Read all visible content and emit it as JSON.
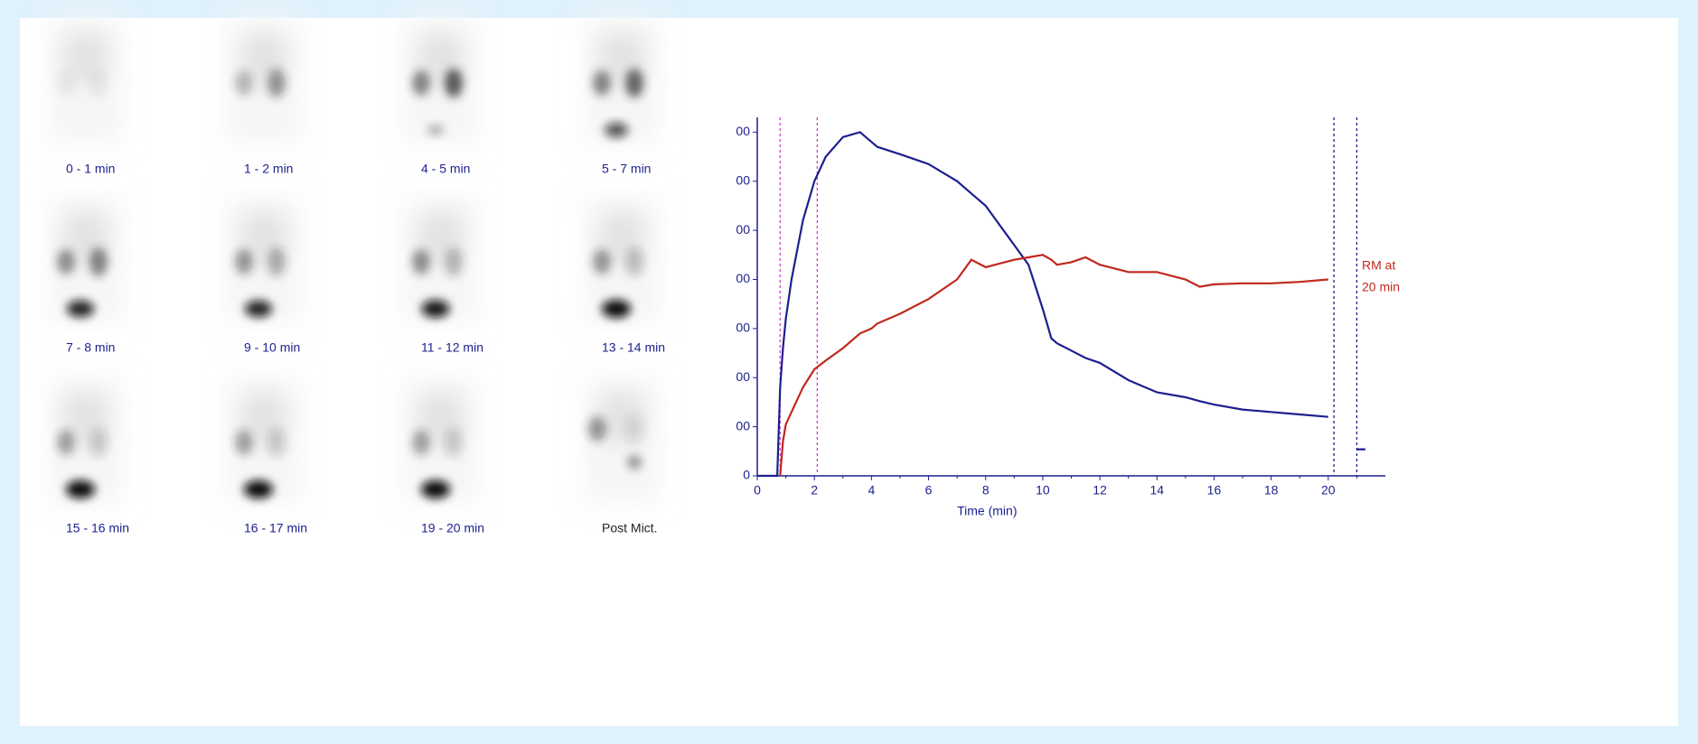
{
  "frames": [
    "0 - 1 min",
    "1 - 2 min",
    "4 - 5 min",
    "5 - 7 min",
    "7 - 8 min",
    "9 - 10 min",
    "11 - 12 min",
    "13 - 14 min",
    "15 - 16 min",
    "16 - 17 min",
    "19 - 20 min",
    "Post Mict."
  ],
  "chart_data": {
    "type": "line",
    "x_label": "Time (min)",
    "annotation": [
      "RM at",
      "20 min"
    ],
    "annotation_color": "#c0281e",
    "x": [
      0,
      0.7,
      0.8,
      0.9,
      1,
      1.2,
      1.6,
      2,
      2.4,
      3,
      3.6,
      3.8,
      4,
      4.2,
      5,
      6,
      7,
      7.5,
      8,
      9,
      9.5,
      10,
      10.3,
      10.5,
      11,
      11.5,
      12,
      13,
      14,
      15,
      15.5,
      16,
      17,
      18,
      19,
      20,
      20.5,
      21,
      21.3
    ],
    "series": [
      {
        "color": "#1c1f8e",
        "values": [
          0,
          0,
          180,
          260,
          320,
          400,
          520,
          600,
          650,
          690,
          700,
          690,
          680,
          670,
          655,
          635,
          600,
          575,
          550,
          470,
          430,
          340,
          280,
          270,
          255,
          240,
          230,
          195,
          170,
          160,
          152,
          145,
          135,
          130,
          125,
          120,
          null,
          54,
          54
        ]
      },
      {
        "color": "#c0281e",
        "values": [
          null,
          null,
          0,
          70,
          105,
          130,
          180,
          217,
          235,
          260,
          290,
          295,
          300,
          310,
          330,
          360,
          400,
          440,
          425,
          440,
          445,
          450,
          440,
          430,
          435,
          445,
          430,
          415,
          415,
          400,
          385,
          390,
          392,
          392,
          395,
          400,
          null,
          null,
          null
        ]
      }
    ],
    "vlines": [
      {
        "value": 0.8,
        "color": "#d040c8"
      },
      {
        "value": 2.1,
        "color": "#d040c8"
      },
      {
        "value": 20.2,
        "color": "#1c1f8e"
      },
      {
        "value": 21,
        "color": "#1c1f8e"
      }
    ],
    "xlim": [
      0,
      22
    ],
    "xticks": [
      0,
      2,
      4,
      6,
      8,
      10,
      12,
      14,
      16,
      18,
      20
    ],
    "ylim": [
      0,
      730
    ],
    "yticks": [
      0,
      {
        "value": 100,
        "label": "00"
      },
      {
        "value": 200,
        "label": "00"
      },
      {
        "value": 300,
        "label": "00"
      },
      {
        "value": 400,
        "label": "00"
      },
      {
        "value": 500,
        "label": "00"
      },
      {
        "value": 600,
        "label": "00"
      },
      {
        "value": 700,
        "label": "00"
      }
    ],
    "axis_color": "#1c1f8e"
  }
}
